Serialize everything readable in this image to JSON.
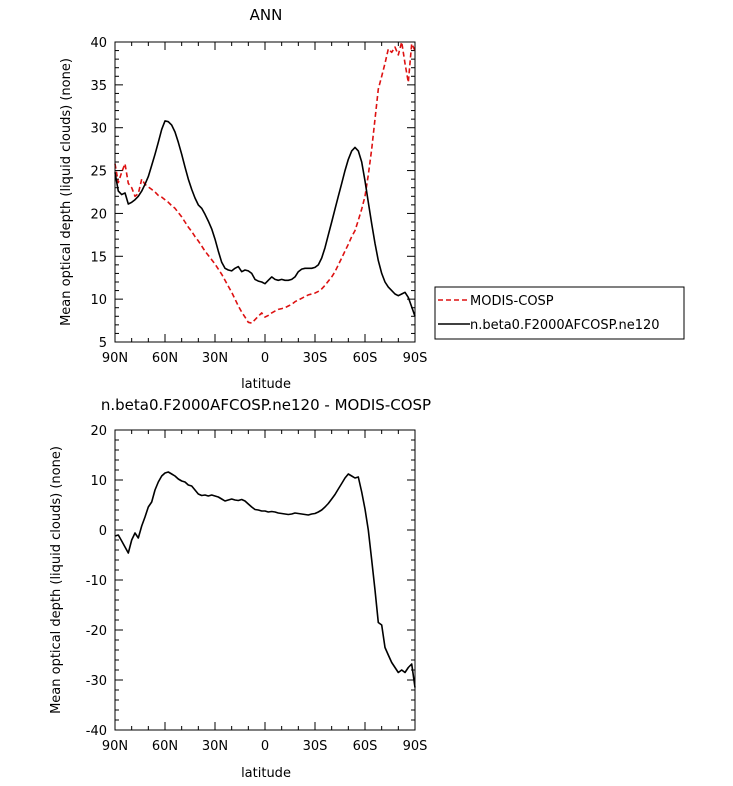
{
  "chart_data": [
    {
      "type": "line",
      "title": "ANN",
      "xlabel": "latitude",
      "ylabel": "Mean optical depth (liquid clouds) (none)",
      "xlim": [
        -90,
        90
      ],
      "ylim": [
        5,
        40
      ],
      "x_ticks": [
        -90,
        -60,
        -30,
        0,
        30,
        60,
        90
      ],
      "x_tick_labels": [
        "90N",
        "60N",
        "30N",
        "0",
        "30S",
        "60S",
        "90S"
      ],
      "y_ticks": [
        5,
        10,
        15,
        20,
        25,
        30,
        35,
        40
      ],
      "legend": "right",
      "grid": false,
      "series": [
        {
          "name": "MODIS-COSP",
          "color": "#dd1111",
          "style": "dashed",
          "x": [
            -90,
            -88,
            -86,
            -84,
            -82,
            -80,
            -78,
            -76,
            -74,
            -72,
            -70,
            -68,
            -66,
            -64,
            -62,
            -60,
            -58,
            -56,
            -54,
            -52,
            -50,
            -48,
            -46,
            -44,
            -42,
            -40,
            -38,
            -36,
            -34,
            -32,
            -30,
            -28,
            -26,
            -24,
            -22,
            -20,
            -18,
            -16,
            -14,
            -12,
            -10,
            -8,
            -6,
            -4,
            -2,
            0,
            2,
            4,
            6,
            8,
            10,
            12,
            14,
            16,
            18,
            20,
            22,
            24,
            26,
            28,
            30,
            32,
            34,
            36,
            38,
            40,
            42,
            44,
            46,
            48,
            50,
            52,
            54,
            56,
            58,
            60,
            62,
            64,
            66,
            68,
            70,
            72,
            74,
            76,
            78,
            80,
            82,
            84,
            86,
            88,
            90
          ],
          "values": [
            25.8,
            23.6,
            24.8,
            25.8,
            23.5,
            23.0,
            22.0,
            22.3,
            24.0,
            23.4,
            23.1,
            22.8,
            22.5,
            22.1,
            21.9,
            21.6,
            21.3,
            20.9,
            20.6,
            20.1,
            19.6,
            19.0,
            18.4,
            17.9,
            17.3,
            16.8,
            16.2,
            15.6,
            15.1,
            14.6,
            14.1,
            13.5,
            12.9,
            12.2,
            11.5,
            10.8,
            10.0,
            9.2,
            8.5,
            7.9,
            7.3,
            7.2,
            7.6,
            8.0,
            8.4,
            7.9,
            8.1,
            8.4,
            8.6,
            8.8,
            8.9,
            9.0,
            9.2,
            9.4,
            9.7,
            9.9,
            10.1,
            10.3,
            10.5,
            10.6,
            10.7,
            10.9,
            11.2,
            11.6,
            12.1,
            12.6,
            13.2,
            14.0,
            14.8,
            15.6,
            16.4,
            17.3,
            18.0,
            19.2,
            20.5,
            22.0,
            24.5,
            27.5,
            31.0,
            34.5,
            36.0,
            37.5,
            39.2,
            38.8,
            39.4,
            38.5,
            40.0,
            37.5,
            35.3,
            39.8,
            39.0
          ]
        },
        {
          "name": "n.beta0.F2000AFCOSP.ne120",
          "color": "#000000",
          "style": "solid",
          "x": [
            -90,
            -88,
            -86,
            -84,
            -82,
            -80,
            -78,
            -76,
            -74,
            -72,
            -70,
            -68,
            -66,
            -64,
            -62,
            -60,
            -58,
            -56,
            -54,
            -52,
            -50,
            -48,
            -46,
            -44,
            -42,
            -40,
            -38,
            -36,
            -34,
            -32,
            -30,
            -28,
            -26,
            -24,
            -22,
            -20,
            -18,
            -16,
            -14,
            -12,
            -10,
            -8,
            -6,
            -4,
            -2,
            0,
            2,
            4,
            6,
            8,
            10,
            12,
            14,
            16,
            18,
            20,
            22,
            24,
            26,
            28,
            30,
            32,
            34,
            36,
            38,
            40,
            42,
            44,
            46,
            48,
            50,
            52,
            54,
            56,
            58,
            60,
            62,
            64,
            66,
            68,
            70,
            72,
            74,
            76,
            78,
            80,
            82,
            84,
            86,
            88,
            90
          ],
          "values": [
            24.8,
            22.6,
            22.2,
            22.4,
            21.1,
            21.3,
            21.6,
            22.0,
            22.6,
            23.4,
            24.3,
            25.6,
            26.9,
            28.3,
            29.8,
            30.8,
            30.7,
            30.3,
            29.5,
            28.3,
            26.9,
            25.4,
            24.0,
            22.8,
            21.8,
            21.0,
            20.6,
            19.9,
            19.1,
            18.2,
            17.0,
            15.6,
            14.3,
            13.6,
            13.4,
            13.3,
            13.6,
            13.8,
            13.2,
            13.4,
            13.3,
            13.0,
            12.3,
            12.1,
            12.0,
            11.8,
            12.2,
            12.6,
            12.3,
            12.2,
            12.3,
            12.2,
            12.2,
            12.3,
            12.6,
            13.2,
            13.5,
            13.6,
            13.6,
            13.6,
            13.7,
            14.0,
            14.8,
            16.0,
            17.5,
            19.0,
            20.5,
            22.0,
            23.5,
            25.0,
            26.3,
            27.3,
            27.7,
            27.3,
            26.0,
            23.8,
            21.3,
            18.8,
            16.5,
            14.5,
            13.0,
            12.0,
            11.4,
            11.0,
            10.6,
            10.4,
            10.6,
            10.8,
            10.2,
            9.1,
            8.0
          ]
        }
      ]
    },
    {
      "type": "line",
      "title": "n.beta0.F2000AFCOSP.ne120 - MODIS-COSP",
      "xlabel": "latitude",
      "ylabel": "Mean optical depth (liquid clouds) (none)",
      "xlim": [
        -90,
        90
      ],
      "ylim": [
        -40,
        20
      ],
      "x_ticks": [
        -90,
        -60,
        -30,
        0,
        30,
        60,
        90
      ],
      "x_tick_labels": [
        "90N",
        "60N",
        "30N",
        "0",
        "30S",
        "60S",
        "90S"
      ],
      "y_ticks": [
        -40,
        -30,
        -20,
        -10,
        0,
        10,
        20
      ],
      "grid": false,
      "series": [
        {
          "color": "#000000",
          "style": "solid",
          "x": [
            -90,
            -88,
            -86,
            -84,
            -82,
            -80,
            -78,
            -76,
            -74,
            -72,
            -70,
            -68,
            -66,
            -64,
            -62,
            -60,
            -58,
            -56,
            -54,
            -52,
            -50,
            -48,
            -46,
            -44,
            -42,
            -40,
            -38,
            -36,
            -34,
            -32,
            -30,
            -28,
            -26,
            -24,
            -22,
            -20,
            -18,
            -16,
            -14,
            -12,
            -10,
            -8,
            -6,
            -4,
            -2,
            0,
            2,
            4,
            6,
            8,
            10,
            12,
            14,
            16,
            18,
            20,
            22,
            24,
            26,
            28,
            30,
            32,
            34,
            36,
            38,
            40,
            42,
            44,
            46,
            48,
            50,
            52,
            54,
            56,
            58,
            60,
            62,
            64,
            66,
            68,
            70,
            72,
            74,
            76,
            78,
            80,
            82,
            84,
            86,
            88,
            90
          ],
          "values": [
            -1.2,
            -1.0,
            -2.2,
            -3.4,
            -4.6,
            -2.0,
            -0.6,
            -1.6,
            0.8,
            2.6,
            4.6,
            5.6,
            8.0,
            9.6,
            10.8,
            11.4,
            11.6,
            11.2,
            10.8,
            10.2,
            9.8,
            9.6,
            9.0,
            8.8,
            8.0,
            7.2,
            6.9,
            7.0,
            6.8,
            7.0,
            6.8,
            6.6,
            6.2,
            5.8,
            6.0,
            6.2,
            6.0,
            5.9,
            6.1,
            5.8,
            5.2,
            4.6,
            4.1,
            4.0,
            3.8,
            3.8,
            3.6,
            3.7,
            3.6,
            3.4,
            3.3,
            3.2,
            3.1,
            3.2,
            3.4,
            3.3,
            3.2,
            3.1,
            3.0,
            3.2,
            3.3,
            3.6,
            4.0,
            4.6,
            5.3,
            6.2,
            7.1,
            8.2,
            9.3,
            10.4,
            11.2,
            10.8,
            10.4,
            10.6,
            7.6,
            4.2,
            0.0,
            -6.0,
            -12.0,
            -18.5,
            -19.0,
            -23.5,
            -25.0,
            -26.5,
            -27.5,
            -28.5,
            -28.0,
            -28.5,
            -27.5,
            -26.8,
            -31.5
          ]
        }
      ]
    }
  ]
}
